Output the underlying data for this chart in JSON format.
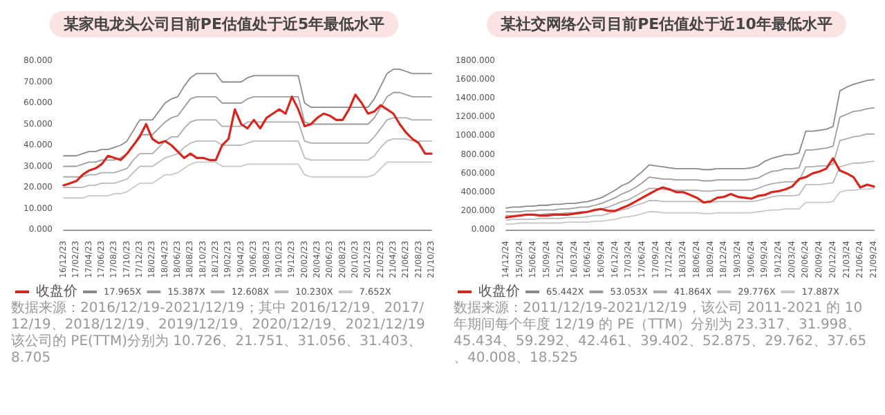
{
  "chart_data": [
    {
      "type": "line",
      "title": "某家电龙头公司目前PE估值处于近5年最低水平",
      "categories": [
        "16/12/23",
        null,
        "17/02/23",
        null,
        "17/04/23",
        null,
        "17/06/23",
        null,
        "17/08/23",
        null,
        "17/10/23",
        null,
        "17/12/23",
        null,
        "18/02/23",
        null,
        "18/04/23",
        null,
        "18/06/23",
        null,
        "18/08/23",
        null,
        "18/10/23",
        null,
        "18/12/23",
        null,
        "19/02/23",
        null,
        "19/04/23",
        null,
        "19/06/23",
        null,
        "19/08/23",
        null,
        "19/10/23",
        null,
        "19/12/23",
        null,
        "20/02/23",
        null,
        "20/04/23",
        null,
        "20/06/23",
        null,
        "20/08/23",
        null,
        "20/10/23",
        null,
        "20/12/23",
        null,
        "21/02/23",
        null,
        "21/04/23",
        null,
        "21/06/23",
        null,
        "21/08/23",
        null,
        "21/10/23"
      ],
      "series": [
        {
          "name": "收盘价",
          "color": "#d7261e",
          "values": [
            21,
            22,
            23,
            26,
            28,
            29,
            31,
            35,
            34,
            33,
            36,
            40,
            44,
            50,
            43,
            41,
            42,
            40,
            37,
            34,
            36,
            34,
            34,
            33,
            33,
            40,
            43,
            57,
            50,
            48,
            52,
            48,
            53,
            55,
            57,
            55,
            63,
            57,
            49,
            50,
            53,
            55,
            54,
            52,
            52,
            57,
            64,
            60,
            55,
            56,
            59,
            57,
            55,
            50,
            46,
            43,
            41,
            36,
            36
          ]
        },
        {
          "name": "17.965X",
          "color": "#8a8a8a",
          "values": [
            35,
            35,
            35,
            36,
            37,
            37,
            38,
            38,
            39,
            40,
            42,
            47,
            52,
            52,
            52,
            56,
            60,
            62,
            63,
            68,
            72,
            74,
            74,
            74,
            74,
            70,
            70,
            70,
            70,
            72,
            73,
            73,
            73,
            73,
            73,
            73,
            73,
            73,
            60,
            58,
            58,
            58,
            58,
            58,
            58,
            58,
            58,
            58,
            58,
            62,
            68,
            74,
            76,
            76,
            75,
            74,
            74,
            74,
            74
          ]
        },
        {
          "name": "15.387X",
          "color": "#9c9c9c",
          "values": [
            30,
            30,
            30,
            31,
            32,
            32,
            33,
            33,
            33,
            34,
            36,
            40,
            45,
            45,
            45,
            48,
            51,
            53,
            54,
            58,
            62,
            63,
            63,
            63,
            63,
            60,
            60,
            60,
            60,
            62,
            63,
            63,
            63,
            63,
            63,
            63,
            63,
            63,
            51,
            50,
            50,
            50,
            50,
            50,
            50,
            50,
            50,
            50,
            50,
            53,
            58,
            63,
            65,
            65,
            64,
            63,
            63,
            63,
            63
          ]
        },
        {
          "name": "12.608X",
          "color": "#acacac",
          "values": [
            25,
            25,
            25,
            25,
            26,
            26,
            27,
            27,
            27,
            28,
            29,
            33,
            36,
            36,
            36,
            39,
            42,
            44,
            44,
            48,
            51,
            52,
            52,
            52,
            52,
            49,
            49,
            49,
            49,
            51,
            51,
            51,
            51,
            51,
            51,
            51,
            51,
            51,
            42,
            41,
            41,
            41,
            41,
            41,
            41,
            41,
            41,
            41,
            41,
            44,
            48,
            52,
            53,
            53,
            53,
            52,
            52,
            52,
            52
          ]
        },
        {
          "name": "10.230X",
          "color": "#bbbbbb",
          "values": [
            20,
            20,
            20,
            20,
            21,
            21,
            22,
            22,
            22,
            23,
            24,
            27,
            30,
            30,
            30,
            32,
            34,
            35,
            36,
            39,
            41,
            42,
            42,
            42,
            42,
            40,
            40,
            40,
            40,
            41,
            42,
            42,
            42,
            42,
            42,
            42,
            42,
            42,
            34,
            33,
            33,
            33,
            33,
            33,
            33,
            33,
            33,
            33,
            33,
            35,
            39,
            42,
            43,
            43,
            43,
            42,
            42,
            42,
            42
          ]
        },
        {
          "name": "7.652X",
          "color": "#c8c8c8",
          "values": [
            15,
            15,
            15,
            15,
            16,
            16,
            16,
            16,
            17,
            17,
            18,
            20,
            22,
            22,
            22,
            24,
            26,
            26,
            27,
            29,
            31,
            32,
            32,
            32,
            32,
            30,
            30,
            30,
            30,
            31,
            31,
            31,
            31,
            31,
            31,
            31,
            31,
            31,
            26,
            25,
            25,
            25,
            25,
            25,
            25,
            25,
            25,
            25,
            25,
            26,
            29,
            32,
            32,
            32,
            32,
            32,
            32,
            32,
            32
          ]
        }
      ],
      "ylim": [
        0,
        80
      ],
      "yticks": [
        {
          "value": 0,
          "label": "0.000"
        },
        {
          "value": 10,
          "label": "10.000"
        },
        {
          "value": 20,
          "label": "20.000"
        },
        {
          "value": 30,
          "label": "30.000"
        },
        {
          "value": 40,
          "label": "40.000"
        },
        {
          "value": 50,
          "label": "50.000"
        },
        {
          "value": 60,
          "label": "60.000"
        },
        {
          "value": 70,
          "label": "70.000"
        },
        {
          "value": 80,
          "label": "80.000"
        }
      ],
      "marker": "none",
      "legend": "bottom",
      "annotations": [
        "数据来源：2016/12/19-2021/12/19；其中 2016/12/19、2017/12/19、2018/12/19、2019/12/19、2020/12/19、2021/12/19 该公司的 PE(TTM)分别为 10.726、21.751、31.056、31.403、8.705"
      ]
    },
    {
      "type": "line",
      "title": "某社交网络公司目前PE估值处于近10年最低水平",
      "categories": [
        "14/12/24",
        null,
        "15/03/24",
        null,
        "15/06/24",
        null,
        "15/09/24",
        null,
        "15/12/24",
        null,
        "16/03/24",
        null,
        "16/06/24",
        null,
        "16/09/24",
        null,
        "16/12/24",
        null,
        "17/03/24",
        null,
        "17/06/24",
        null,
        "17/09/24",
        null,
        "17/12/24",
        null,
        "18/03/24",
        null,
        "18/06/24",
        null,
        "18/09/24",
        null,
        "18/12/24",
        null,
        "19/03/24",
        null,
        "19/06/24",
        null,
        "19/09/24",
        null,
        "19/12/24",
        null,
        "20/03/24",
        null,
        "20/06/24",
        null,
        "20/09/24",
        null,
        "20/12/24",
        null,
        "21/03/24",
        null,
        "21/06/24",
        null,
        "21/09/24"
      ],
      "series": [
        {
          "name": "收盘价",
          "color": "#d7261e",
          "values": [
            130,
            140,
            150,
            160,
            160,
            150,
            150,
            160,
            160,
            160,
            170,
            180,
            190,
            210,
            220,
            200,
            200,
            230,
            260,
            300,
            340,
            380,
            420,
            450,
            430,
            400,
            400,
            370,
            340,
            290,
            300,
            340,
            350,
            380,
            350,
            340,
            330,
            360,
            370,
            400,
            410,
            430,
            460,
            540,
            560,
            600,
            620,
            650,
            760,
            630,
            600,
            560,
            450,
            480,
            460
          ]
        },
        {
          "name": "65.442X",
          "color": "#8a8a8a",
          "values": [
            230,
            240,
            240,
            250,
            250,
            260,
            260,
            270,
            270,
            280,
            280,
            290,
            300,
            320,
            340,
            380,
            420,
            470,
            500,
            560,
            620,
            690,
            680,
            670,
            660,
            650,
            650,
            650,
            650,
            640,
            640,
            650,
            650,
            650,
            650,
            650,
            660,
            680,
            730,
            760,
            780,
            800,
            800,
            820,
            1050,
            1050,
            1060,
            1070,
            1100,
            1480,
            1520,
            1550,
            1570,
            1590,
            1600
          ]
        },
        {
          "name": "53.053X",
          "color": "#9c9c9c",
          "values": [
            190,
            190,
            190,
            200,
            200,
            210,
            210,
            210,
            220,
            220,
            230,
            240,
            240,
            260,
            280,
            310,
            340,
            380,
            410,
            450,
            500,
            560,
            550,
            540,
            540,
            530,
            530,
            530,
            530,
            520,
            520,
            530,
            530,
            530,
            530,
            530,
            540,
            550,
            590,
            620,
            630,
            650,
            650,
            660,
            850,
            850,
            860,
            870,
            890,
            1200,
            1230,
            1260,
            1270,
            1290,
            1300
          ]
        },
        {
          "name": "41.864X",
          "color": "#acacac",
          "values": [
            150,
            150,
            150,
            160,
            160,
            160,
            170,
            170,
            170,
            180,
            180,
            190,
            190,
            200,
            220,
            240,
            270,
            300,
            320,
            360,
            400,
            440,
            440,
            430,
            420,
            420,
            420,
            420,
            420,
            410,
            410,
            420,
            420,
            420,
            420,
            420,
            420,
            440,
            470,
            490,
            500,
            510,
            510,
            520,
            670,
            670,
            680,
            680,
            700,
            950,
            970,
            990,
            1000,
            1020,
            1020
          ]
        },
        {
          "name": "29.776X",
          "color": "#bbbbbb",
          "values": [
            100,
            110,
            110,
            110,
            110,
            120,
            120,
            120,
            120,
            130,
            130,
            130,
            140,
            150,
            150,
            170,
            190,
            210,
            230,
            260,
            280,
            310,
            310,
            300,
            300,
            300,
            300,
            300,
            300,
            290,
            290,
            300,
            300,
            300,
            300,
            300,
            300,
            310,
            330,
            350,
            360,
            360,
            360,
            370,
            480,
            480,
            480,
            490,
            500,
            670,
            690,
            710,
            710,
            720,
            730
          ]
        },
        {
          "name": "17.887X",
          "color": "#c8c8c8",
          "values": [
            60,
            60,
            70,
            70,
            70,
            70,
            70,
            70,
            70,
            80,
            80,
            80,
            80,
            90,
            90,
            100,
            110,
            130,
            140,
            150,
            170,
            190,
            190,
            180,
            180,
            180,
            180,
            180,
            180,
            170,
            170,
            180,
            180,
            180,
            180,
            180,
            180,
            190,
            200,
            210,
            210,
            220,
            220,
            220,
            290,
            290,
            290,
            290,
            300,
            400,
            420,
            420,
            430,
            430,
            440
          ]
        }
      ],
      "ylim": [
        0,
        1800
      ],
      "yticks": [
        {
          "value": 0,
          "label": "0.000"
        },
        {
          "value": 200,
          "label": "200.000"
        },
        {
          "value": 400,
          "label": "400.000"
        },
        {
          "value": 600,
          "label": "600.000"
        },
        {
          "value": 800,
          "label": "800.000"
        },
        {
          "value": 1000,
          "label": "1000.000"
        },
        {
          "value": 1200,
          "label": "1200.000"
        },
        {
          "value": 1400,
          "label": "1400.000"
        },
        {
          "value": 1600,
          "label": "1600.000"
        },
        {
          "value": 1800,
          "label": "1800.000"
        }
      ],
      "marker": "none",
      "legend": "bottom",
      "annotations": [
        "数据来源：2011/12/19-2021/12/19，该公司 2011-2021 的 10 年期间每个年度 12/19 的 PE（TTM）分别为 23.317、31.998、45.434、59.292、42.461、39.402、52.875、29.762、37.65、40.008、18.525"
      ]
    }
  ]
}
